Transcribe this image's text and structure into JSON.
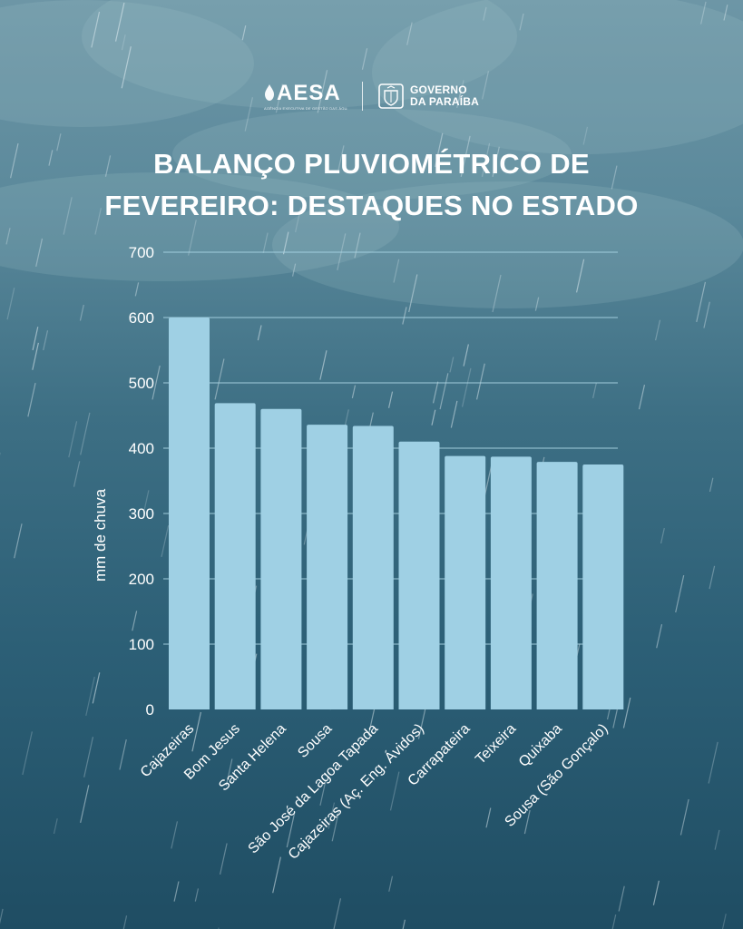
{
  "header": {
    "aesa_logo_text": "AESA",
    "aesa_tagline": "AGÊNCIA EXECUTIVA DE GESTÃO DAS ÁGUAS DO ESTADO DA PARAÍBA",
    "gov_line1": "GOVERNO",
    "gov_line2": "DA PARAÍBA"
  },
  "title": "BALANÇO PLUVIOMÉTRICO DE\nFEVEREIRO: DESTAQUES NO ESTADO",
  "colors": {
    "bar": "#9fd0e4",
    "grid": "#a8d4e3",
    "text": "#ffffff"
  },
  "chart_data": {
    "type": "bar",
    "title": "BALANÇO PLUVIOMÉTRICO DE FEVEREIRO: DESTAQUES NO ESTADO",
    "xlabel": "",
    "ylabel": "mm de chuva",
    "ylim": [
      0,
      700
    ],
    "yticks": [
      0,
      100,
      200,
      300,
      400,
      500,
      600,
      700
    ],
    "grid": true,
    "categories": [
      "Cajazeiras",
      "Bom Jesus",
      "Santa Helena",
      "Sousa",
      "São José da Lagoa Tapada",
      "Cajazeiras (Aç. Eng. Ávidos)",
      "Carrapateira",
      "Teixeira",
      "Quixaba",
      "Sousa (São Gonçalo)"
    ],
    "values": [
      600,
      469,
      460,
      436,
      434,
      410,
      388,
      387,
      379,
      375
    ]
  }
}
